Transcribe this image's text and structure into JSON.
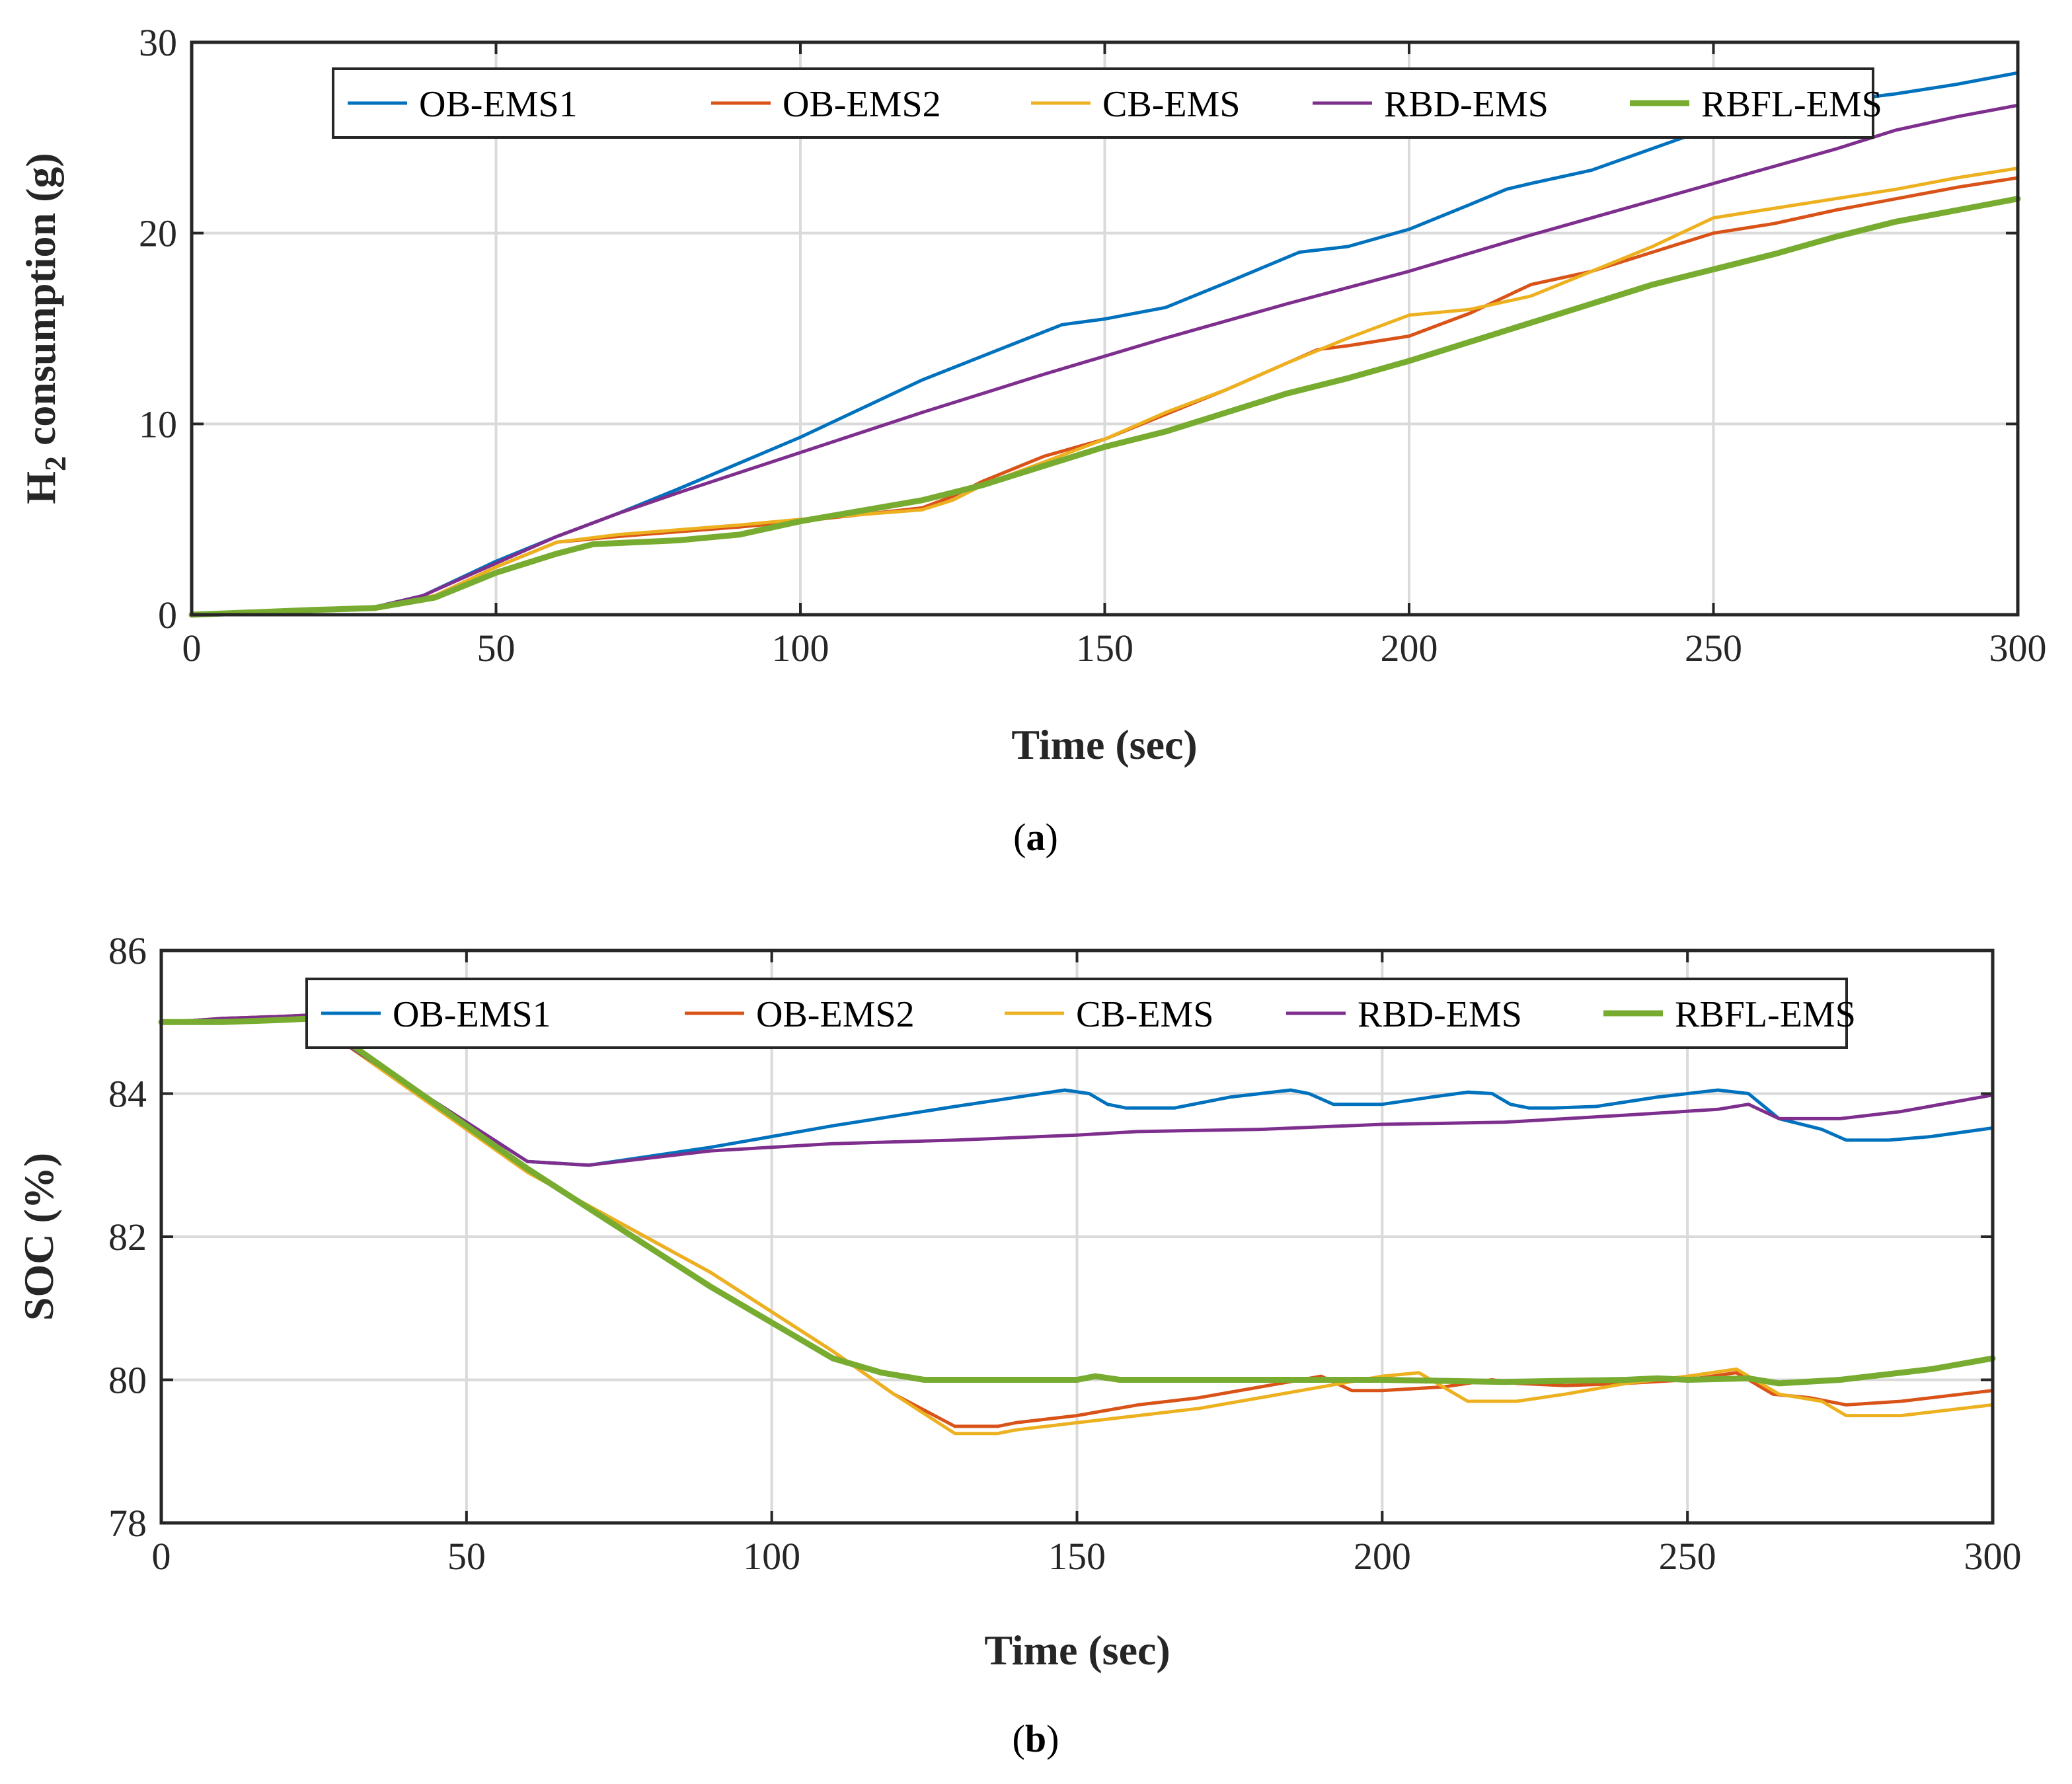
{
  "colors": {
    "OB-EMS1": "#0072BD",
    "OB-EMS2": "#D95319",
    "CB-EMS": "#EDB120",
    "RBD-EMS": "#7E2F8E",
    "RBFL-EMS": "#77AC30"
  },
  "chart_data": [
    {
      "type": "line",
      "caption_letter": "a",
      "title": "",
      "xlabel": "Time (sec)",
      "ylabel_main": "H",
      "ylabel_sub": "2",
      "ylabel_rest": " consumption (g)",
      "xlim": [
        0,
        300
      ],
      "ylim": [
        0,
        30
      ],
      "xticks": [
        0,
        50,
        100,
        150,
        200,
        250,
        300
      ],
      "yticks": [
        0,
        10,
        20,
        30
      ],
      "grid": true,
      "legend_position": "top, horizontal",
      "series": [
        {
          "name": "OB-EMS1",
          "x": [
            0,
            20,
            30,
            38,
            50,
            60,
            70,
            80,
            100,
            120,
            143,
            150,
            160,
            170,
            182,
            190,
            200,
            210,
            216,
            220,
            230,
            245,
            260,
            270,
            280,
            290,
            300
          ],
          "values": [
            0,
            0.25,
            0.4,
            1.0,
            2.8,
            4.1,
            5.3,
            6.6,
            9.3,
            12.3,
            15.2,
            15.5,
            16.1,
            17.4,
            19.0,
            19.3,
            20.2,
            21.5,
            22.3,
            22.6,
            23.3,
            25.0,
            26.4,
            26.9,
            27.3,
            27.8,
            28.4
          ]
        },
        {
          "name": "OB-EMS2",
          "x": [
            0,
            20,
            30,
            40,
            50,
            60,
            70,
            90,
            100,
            120,
            125,
            130,
            140,
            150,
            160,
            170,
            180,
            185,
            190,
            200,
            210,
            220,
            230,
            240,
            250,
            260,
            270,
            280,
            290,
            300
          ],
          "values": [
            0,
            0.25,
            0.4,
            1.0,
            2.5,
            3.8,
            4.1,
            4.6,
            4.9,
            5.6,
            6.2,
            7.0,
            8.3,
            9.2,
            10.5,
            11.8,
            13.2,
            13.9,
            14.1,
            14.6,
            15.8,
            17.3,
            18.0,
            19.0,
            20.0,
            20.5,
            21.2,
            21.8,
            22.4,
            22.9
          ]
        },
        {
          "name": "CB-EMS",
          "x": [
            0,
            20,
            30,
            40,
            50,
            60,
            70,
            90,
            100,
            120,
            125,
            130,
            140,
            150,
            160,
            170,
            180,
            190,
            200,
            210,
            220,
            230,
            240,
            250,
            260,
            270,
            280,
            290,
            300
          ],
          "values": [
            0,
            0.25,
            0.4,
            1.0,
            2.5,
            3.8,
            4.2,
            4.7,
            5.0,
            5.5,
            6.0,
            6.8,
            8.0,
            9.2,
            10.6,
            11.8,
            13.2,
            14.5,
            15.7,
            16.0,
            16.7,
            18.0,
            19.3,
            20.8,
            21.3,
            21.8,
            22.3,
            22.9,
            23.4
          ]
        },
        {
          "name": "RBD-EMS",
          "x": [
            0,
            20,
            30,
            38,
            50,
            60,
            70,
            80,
            100,
            120,
            140,
            160,
            180,
            200,
            220,
            240,
            260,
            270,
            280,
            290,
            300
          ],
          "values": [
            0,
            0.25,
            0.4,
            1.0,
            2.7,
            4.1,
            5.3,
            6.4,
            8.5,
            10.6,
            12.6,
            14.5,
            16.3,
            18.0,
            19.9,
            21.7,
            23.5,
            24.4,
            25.4,
            26.1,
            26.7
          ]
        },
        {
          "name": "RBFL-EMS",
          "x": [
            0,
            20,
            30,
            40,
            50,
            60,
            66,
            80,
            90,
            100,
            120,
            130,
            140,
            150,
            160,
            170,
            180,
            190,
            200,
            210,
            220,
            230,
            240,
            250,
            260,
            270,
            280,
            290,
            300
          ],
          "values": [
            0,
            0.25,
            0.35,
            0.9,
            2.2,
            3.2,
            3.7,
            3.9,
            4.2,
            4.9,
            6.0,
            6.8,
            7.8,
            8.8,
            9.6,
            10.6,
            11.6,
            12.4,
            13.3,
            14.3,
            15.3,
            16.3,
            17.3,
            18.1,
            18.9,
            19.8,
            20.6,
            21.2,
            21.8
          ]
        }
      ]
    },
    {
      "type": "line",
      "caption_letter": "b",
      "title": "",
      "xlabel": "Time (sec)",
      "ylabel": "SOC (%)",
      "xlim": [
        0,
        300
      ],
      "ylim": [
        78,
        86
      ],
      "xticks": [
        0,
        50,
        100,
        150,
        200,
        250,
        300
      ],
      "yticks": [
        78,
        80,
        82,
        84,
        86
      ],
      "grid": true,
      "legend_position": "top, horizontal",
      "series": [
        {
          "name": "OB-EMS1",
          "x": [
            0,
            5,
            10,
            20,
            25,
            30,
            60,
            70,
            90,
            110,
            130,
            148,
            152,
            155,
            158,
            166,
            175,
            185,
            188,
            192,
            200,
            208,
            214,
            218,
            221,
            224,
            228,
            235,
            245,
            255,
            260,
            265,
            272,
            276,
            283,
            290,
            300
          ],
          "values": [
            85,
            85.02,
            85.05,
            85.08,
            85.1,
            84.7,
            83.05,
            83.0,
            83.25,
            83.55,
            83.82,
            84.05,
            84.0,
            83.85,
            83.8,
            83.8,
            83.95,
            84.05,
            84.0,
            83.85,
            83.85,
            83.95,
            84.02,
            84.0,
            83.85,
            83.8,
            83.8,
            83.82,
            83.95,
            84.05,
            84.0,
            83.65,
            83.5,
            83.35,
            83.35,
            83.4,
            83.52
          ]
        },
        {
          "name": "OB-EMS2",
          "x": [
            0,
            5,
            10,
            20,
            25,
            30,
            60,
            90,
            110,
            120,
            130,
            137,
            140,
            150,
            160,
            170,
            180,
            190,
            195,
            200,
            210,
            218,
            222,
            230,
            240,
            250,
            258,
            261,
            264,
            270,
            276,
            285,
            300
          ],
          "values": [
            85,
            85.02,
            85.05,
            85.08,
            85.1,
            84.7,
            82.9,
            81.5,
            80.4,
            79.8,
            79.35,
            79.35,
            79.4,
            79.5,
            79.65,
            79.75,
            79.9,
            80.05,
            79.85,
            79.85,
            79.9,
            80.0,
            79.95,
            79.92,
            79.95,
            80.0,
            80.1,
            79.95,
            79.8,
            79.75,
            79.65,
            79.7,
            79.85
          ]
        },
        {
          "name": "CB-EMS",
          "x": [
            0,
            5,
            10,
            20,
            25,
            30,
            60,
            90,
            110,
            120,
            130,
            137,
            140,
            150,
            160,
            170,
            180,
            190,
            200,
            206,
            210,
            214,
            222,
            230,
            240,
            250,
            258,
            261,
            265,
            272,
            276,
            285,
            300
          ],
          "values": [
            85,
            85.02,
            85.05,
            85.08,
            85.1,
            84.7,
            82.9,
            81.5,
            80.4,
            79.8,
            79.25,
            79.25,
            79.3,
            79.4,
            79.5,
            79.6,
            79.75,
            79.9,
            80.05,
            80.1,
            79.9,
            79.7,
            79.7,
            79.8,
            79.95,
            80.05,
            80.15,
            80.0,
            79.8,
            79.7,
            79.5,
            79.5,
            79.65
          ]
        },
        {
          "name": "RBD-EMS",
          "x": [
            0,
            5,
            10,
            20,
            25,
            30,
            60,
            70,
            90,
            110,
            130,
            150,
            160,
            180,
            200,
            220,
            240,
            255,
            260,
            265,
            275,
            285,
            300
          ],
          "values": [
            85,
            85.02,
            85.05,
            85.08,
            85.1,
            84.7,
            83.05,
            83.0,
            83.2,
            83.3,
            83.35,
            83.42,
            83.47,
            83.5,
            83.57,
            83.6,
            83.7,
            83.78,
            83.85,
            83.65,
            83.65,
            83.75,
            83.98
          ]
        },
        {
          "name": "RBFL-EMS",
          "x": [
            0,
            10,
            20,
            25,
            30,
            60,
            90,
            110,
            118,
            125,
            130,
            150,
            153,
            157,
            170,
            185,
            190,
            200,
            220,
            240,
            245,
            250,
            260,
            265,
            275,
            290,
            300
          ],
          "values": [
            85,
            85.0,
            85.03,
            85.05,
            84.75,
            82.95,
            81.3,
            80.3,
            80.1,
            80.0,
            80.0,
            80.0,
            80.05,
            80.0,
            80.0,
            80.0,
            80.0,
            80.0,
            79.97,
            80.0,
            80.02,
            80.0,
            80.02,
            79.95,
            80.0,
            80.15,
            80.3
          ]
        }
      ]
    }
  ]
}
